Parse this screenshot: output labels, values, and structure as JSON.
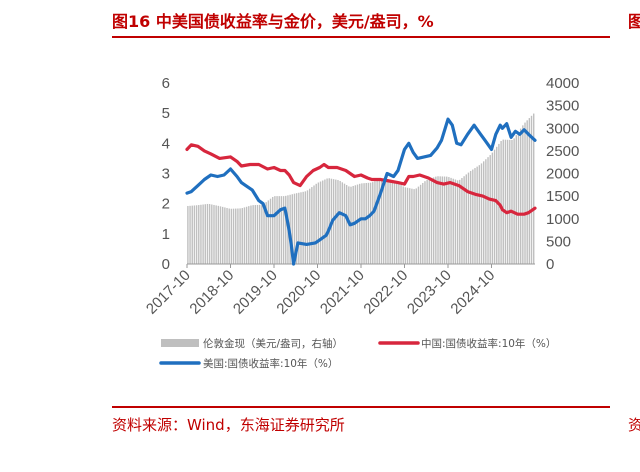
{
  "header": {
    "title": "图16  中美国债收益率与金价，美元/盎司，%"
  },
  "footer": {
    "source": "资料来源：Wind，东海证券研究所"
  },
  "edge": {
    "top_glyph": "图",
    "bottom_glyph": "资"
  },
  "chart_data": {
    "type": "line",
    "x_tick_labels": [
      "2017-10",
      "2018-10",
      "2019-10",
      "2020-10",
      "2021-10",
      "2022-10",
      "2023-10",
      "2024-10"
    ],
    "x_ticks_t": [
      2017.75,
      2018.75,
      2019.75,
      2020.75,
      2021.75,
      2022.75,
      2023.75,
      2024.75
    ],
    "x_range": [
      2017.75,
      2025.75
    ],
    "left_axis": {
      "ylim": [
        0,
        6
      ],
      "ticks": [
        0,
        1,
        2,
        3,
        4,
        5,
        6
      ]
    },
    "right_axis": {
      "ylim": [
        0,
        4000
      ],
      "ticks": [
        0,
        500,
        1000,
        1500,
        2000,
        2500,
        3000,
        3500,
        4000
      ]
    },
    "legend": [
      "伦敦金现（美元/盎司，右轴）",
      "中国:国债收益率:10年（%）",
      "美国:国债收益率:10年（%）"
    ],
    "series": [
      {
        "name": "伦敦金现（美元/盎司，右轴）",
        "type": "bar",
        "axis": "right",
        "color": "#BFBFBF",
        "x": [
          2017.75,
          2018.0,
          2018.25,
          2018.5,
          2018.75,
          2019.0,
          2019.25,
          2019.5,
          2019.75,
          2020.0,
          2020.25,
          2020.5,
          2020.75,
          2021.0,
          2021.25,
          2021.5,
          2021.75,
          2022.0,
          2022.25,
          2022.5,
          2022.75,
          2023.0,
          2023.25,
          2023.5,
          2023.75,
          2024.0,
          2024.25,
          2024.5,
          2024.75,
          2025.0,
          2025.25,
          2025.5,
          2025.75
        ],
        "values": [
          1280,
          1300,
          1330,
          1280,
          1220,
          1230,
          1300,
          1310,
          1500,
          1500,
          1560,
          1610,
          1790,
          1900,
          1850,
          1700,
          1780,
          1800,
          1900,
          1850,
          1700,
          1650,
          1850,
          1940,
          1930,
          1840,
          2040,
          2200,
          2430,
          2750,
          2740,
          3100,
          3350
        ]
      },
      {
        "name": "中国:国债收益率:10年（%）",
        "type": "line",
        "axis": "left",
        "color": "#D7263D",
        "x": [
          2017.75,
          2017.85,
          2018.0,
          2018.15,
          2018.3,
          2018.5,
          2018.75,
          2018.9,
          2019.0,
          2019.2,
          2019.4,
          2019.6,
          2019.75,
          2019.9,
          2020.0,
          2020.1,
          2020.2,
          2020.35,
          2020.5,
          2020.65,
          2020.8,
          2020.9,
          2021.0,
          2021.2,
          2021.4,
          2021.6,
          2021.75,
          2021.9,
          2022.0,
          2022.2,
          2022.4,
          2022.6,
          2022.75,
          2022.85,
          2022.95,
          2023.1,
          2023.3,
          2023.5,
          2023.65,
          2023.8,
          2024.0,
          2024.2,
          2024.4,
          2024.55,
          2024.7,
          2024.85,
          2024.95,
          2025.0,
          2025.1,
          2025.2,
          2025.35,
          2025.5,
          2025.6,
          2025.75
        ],
        "values": [
          3.8,
          3.95,
          3.9,
          3.75,
          3.65,
          3.5,
          3.55,
          3.4,
          3.25,
          3.3,
          3.3,
          3.15,
          3.2,
          3.1,
          3.1,
          2.95,
          2.7,
          2.6,
          2.9,
          3.1,
          3.2,
          3.3,
          3.2,
          3.2,
          3.1,
          2.9,
          2.95,
          2.85,
          2.8,
          2.8,
          2.75,
          2.7,
          2.65,
          2.9,
          2.9,
          2.95,
          2.85,
          2.7,
          2.65,
          2.7,
          2.6,
          2.4,
          2.3,
          2.25,
          2.15,
          2.1,
          1.95,
          1.8,
          1.7,
          1.75,
          1.65,
          1.65,
          1.7,
          1.85
        ]
      },
      {
        "name": "美国:国债收益率:10年（%）",
        "type": "line",
        "axis": "left",
        "color": "#1F6FBF",
        "x": [
          2017.75,
          2017.85,
          2018.0,
          2018.15,
          2018.3,
          2018.45,
          2018.6,
          2018.75,
          2018.9,
          2019.0,
          2019.1,
          2019.25,
          2019.4,
          2019.5,
          2019.6,
          2019.75,
          2019.9,
          2020.0,
          2020.05,
          2020.1,
          2020.15,
          2020.2,
          2020.3,
          2020.5,
          2020.7,
          2020.8,
          2020.95,
          2021.0,
          2021.1,
          2021.25,
          2021.4,
          2021.5,
          2021.6,
          2021.75,
          2021.85,
          2021.95,
          2022.05,
          2022.1,
          2022.2,
          2022.35,
          2022.5,
          2022.6,
          2022.75,
          2022.85,
          2022.95,
          2023.05,
          2023.2,
          2023.35,
          2023.5,
          2023.6,
          2023.75,
          2023.85,
          2023.95,
          2024.05,
          2024.2,
          2024.35,
          2024.5,
          2024.6,
          2024.75,
          2024.85,
          2024.95,
          2025.0,
          2025.1,
          2025.2,
          2025.3,
          2025.4,
          2025.5,
          2025.6,
          2025.75
        ],
        "values": [
          2.35,
          2.4,
          2.6,
          2.8,
          2.95,
          2.9,
          2.95,
          3.15,
          2.9,
          2.7,
          2.6,
          2.45,
          2.1,
          2.0,
          1.6,
          1.6,
          1.8,
          1.85,
          1.5,
          1.1,
          0.6,
          0.0,
          0.7,
          0.65,
          0.7,
          0.8,
          0.95,
          1.1,
          1.45,
          1.7,
          1.6,
          1.3,
          1.35,
          1.5,
          1.5,
          1.6,
          1.75,
          1.95,
          2.35,
          3.0,
          2.9,
          3.1,
          3.8,
          4.0,
          3.7,
          3.5,
          3.55,
          3.6,
          3.85,
          4.1,
          4.8,
          4.6,
          4.0,
          3.95,
          4.3,
          4.6,
          4.3,
          4.1,
          3.8,
          4.3,
          4.6,
          4.5,
          4.65,
          4.2,
          4.4,
          4.3,
          4.45,
          4.3,
          4.1
        ]
      }
    ]
  }
}
